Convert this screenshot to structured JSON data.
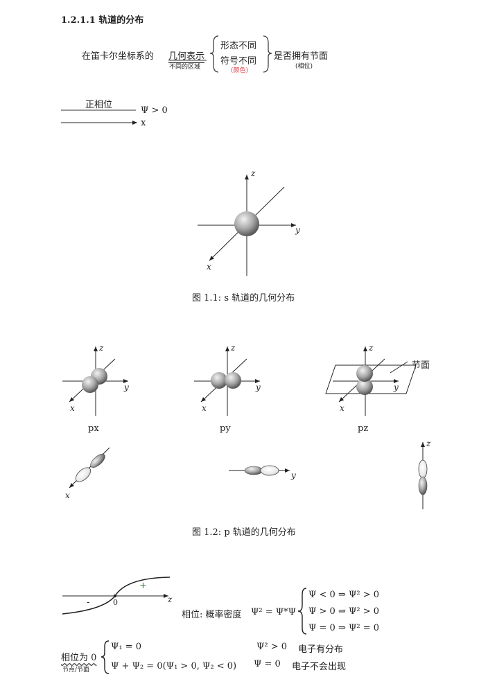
{
  "section": {
    "number": "1.2.1.1",
    "title": "轨道的分布"
  },
  "intro": {
    "prefix": "在笛卡尔坐标系的",
    "geo": "几何表示",
    "geo_sub": "不同的区域",
    "brace_top": "形态不同",
    "brace_bottom": "符号不同",
    "brace_note": "(颜色)",
    "suffix": "是否拥有节面",
    "suffix_sub": "(相位)"
  },
  "phase": {
    "label": "正相位",
    "psi": "Ψ > 0",
    "axis": "x"
  },
  "fig1": {
    "caption": "图 1.1: s 轨道的几何分布",
    "z": "z",
    "y": "y",
    "x": "x"
  },
  "fig2": {
    "caption": "图 1.2: p 轨道的几何分布",
    "px": "px",
    "py": "py",
    "pz": "pz",
    "node_plane": "节面",
    "z": "z",
    "y": "y",
    "x": "x"
  },
  "fig3": {
    "minus": "-",
    "plus": "+",
    "zero": "0",
    "z": "z",
    "phase_label": "相位: 概率密度",
    "eq": "Ψ² = Ψ*Ψ",
    "cases": [
      "Ψ < 0 ⇒ Ψ² > 0",
      "Ψ > 0 ⇒ Ψ² > 0",
      "Ψ = 0 ⇒ Ψ² = 0"
    ]
  },
  "bottom": {
    "label": "相位为 0",
    "label_sub": "节点/节面",
    "line1": "Ψ₁ = 0",
    "line2": "Ψ + Ψ₂ = 0(Ψ₁ > 0, Ψ₂ < 0)",
    "r1_eq": "Ψ² > 0",
    "r1_text": "电子有分布",
    "r2_eq": "Ψ = 0",
    "r2_text": "电子不会出现"
  }
}
